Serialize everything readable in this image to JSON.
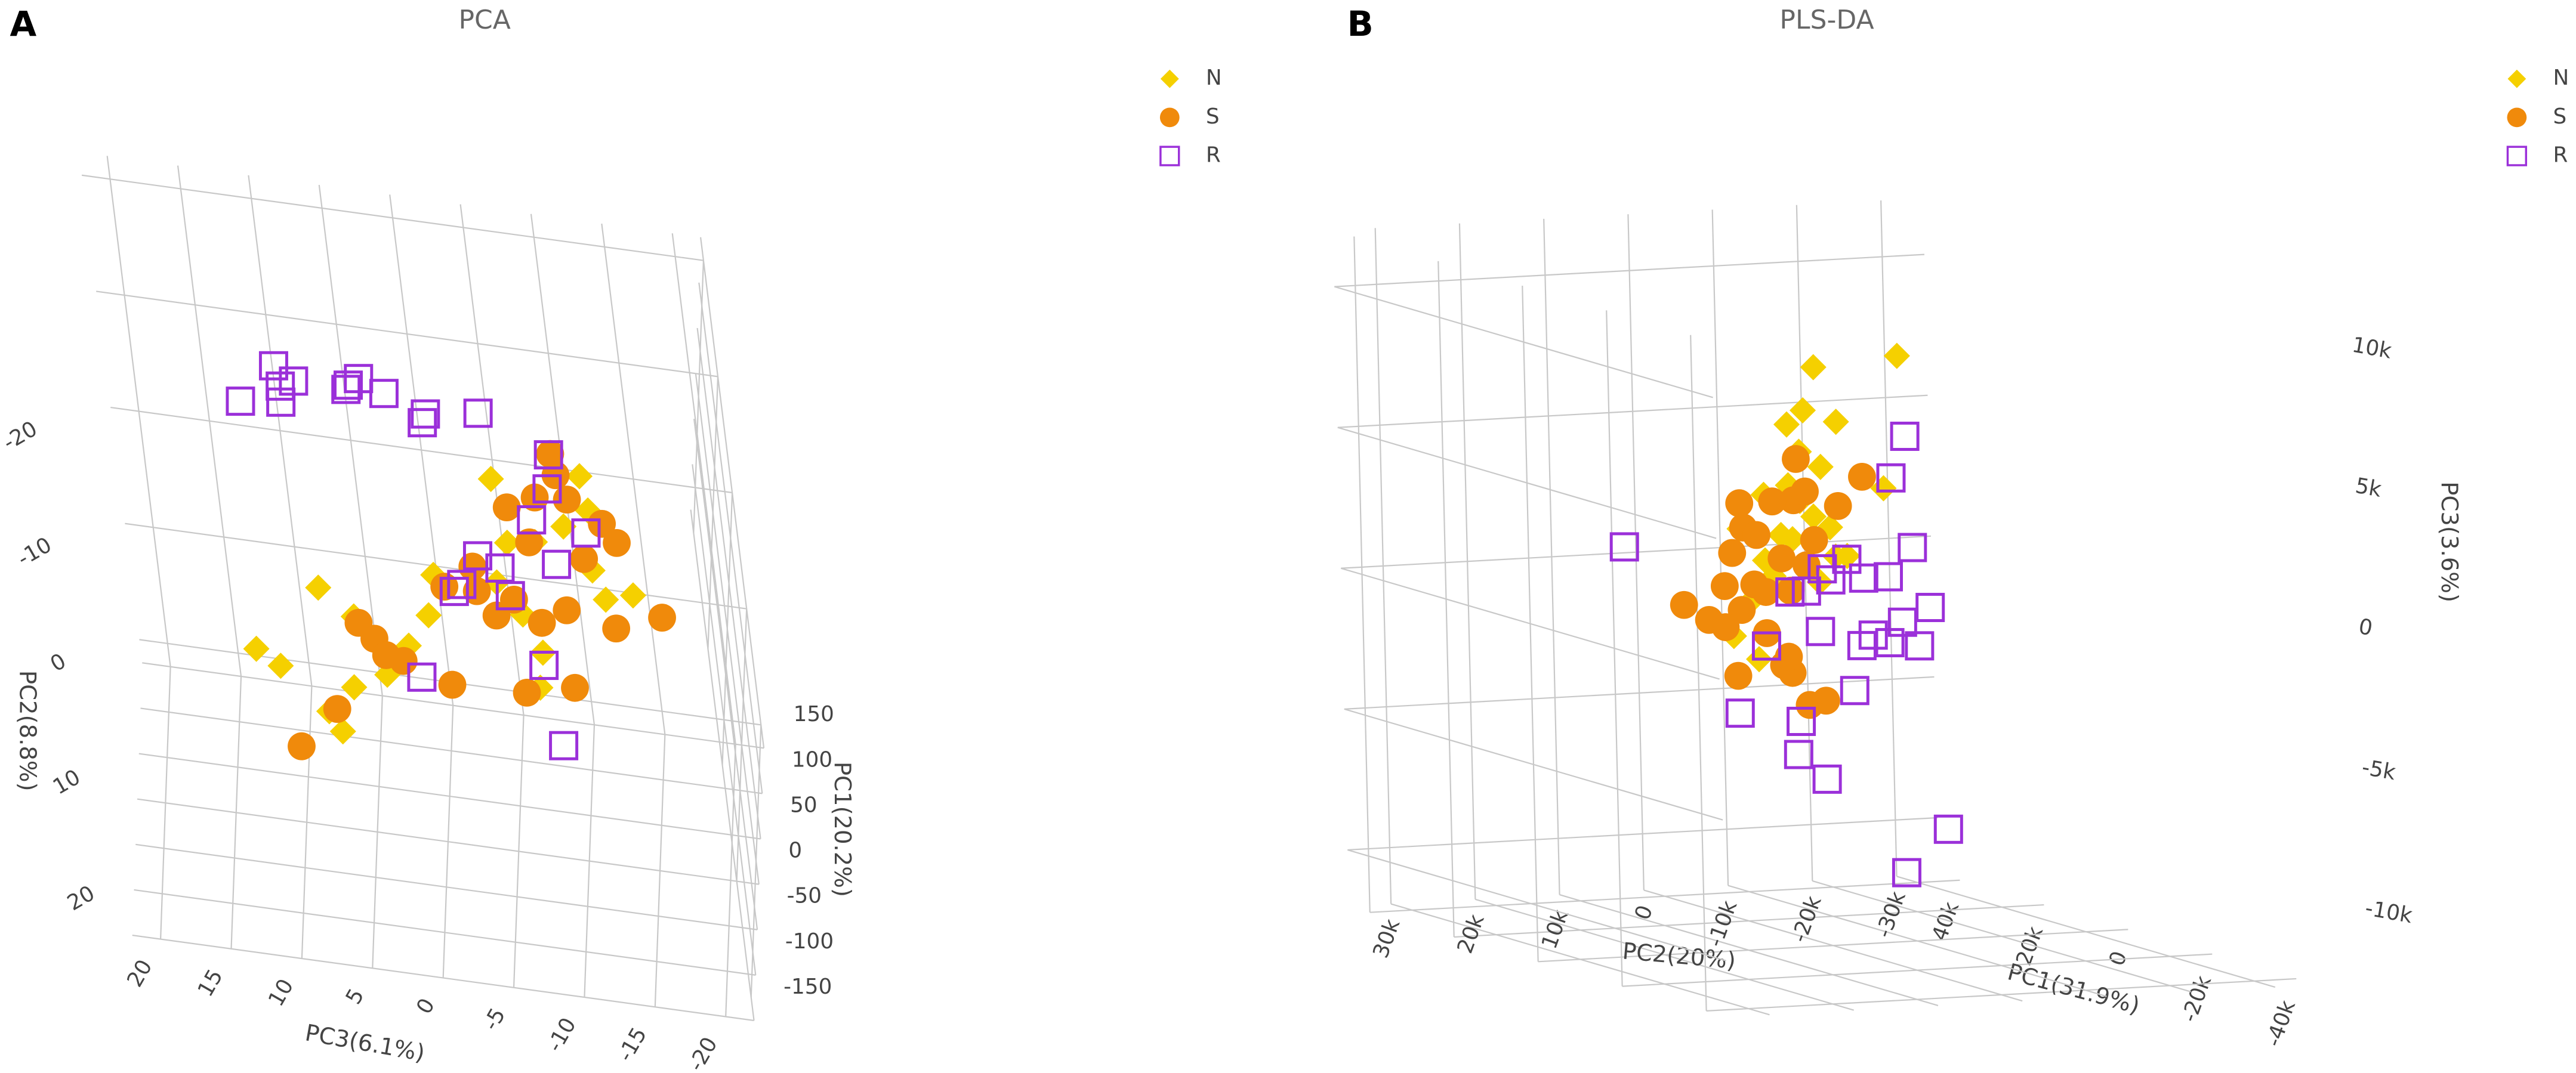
{
  "chart_data": [
    {
      "type": "scatter3d",
      "panel_label": "A",
      "title": "PCA",
      "xlabel": "PC1(20.2%)",
      "ylabel": "PC2(8.8%)",
      "zlabel": "PC3(6.1%)",
      "xlim": [
        -150,
        150
      ],
      "xticks": [
        -150,
        -100,
        -50,
        0,
        50,
        100,
        150
      ],
      "ylim": [
        -22,
        22
      ],
      "yticks": [
        -20,
        -10,
        0,
        10,
        20
      ],
      "zlim": [
        -22,
        22
      ],
      "zticks": [
        -20,
        -15,
        -10,
        -5,
        0,
        5,
        10,
        15,
        20
      ],
      "series": [
        {
          "name": "N",
          "color": "#f5d000",
          "marker": "diamond",
          "x": [
            30,
            30,
            30,
            30,
            30,
            30,
            30,
            30,
            30,
            30,
            30,
            30,
            30,
            30,
            30,
            30,
            30,
            30,
            30,
            30,
            30,
            30,
            30,
            30
          ],
          "y": [
            -7.9,
            -9.2,
            -4.6,
            -6.3,
            0.6,
            -1.1,
            -2.5,
            1.2,
            4.8,
            3.7,
            5.8,
            9.8,
            11.0,
            7.7,
            10.5,
            12.0,
            14.4,
            16.0,
            6.7,
            9.8,
            1.1,
            3.6,
            1.3,
            -2.9
          ],
          "z": [
            -6.0,
            -12.4,
            -10.8,
            -12.7,
            -15.2,
            -12.5,
            -6.6,
            -1.0,
            -0.3,
            7.4,
            5.1,
            12.4,
            10.8,
            1.4,
            3.2,
            5.7,
            7.7,
            6.9,
            -8.2,
            -7.7,
            -5.5,
            -7.1,
            -13.2,
            -8.6
          ]
        },
        {
          "name": "S",
          "color": "#f08a0b",
          "marker": "circle",
          "x": [
            10,
            10,
            10,
            10,
            10,
            10,
            10,
            10,
            10,
            10,
            10,
            10,
            10,
            10,
            10,
            10,
            10,
            10,
            10,
            10,
            10,
            10,
            10,
            10,
            10,
            10,
            10
          ],
          "y": [
            -12.4,
            -8.4,
            -8.6,
            -6.9,
            -5.4,
            -3.6,
            -7.2,
            -1.6,
            0.5,
            2.4,
            0.5,
            0.8,
            1.1,
            2.1,
            0.6,
            2.5,
            8.8,
            7.8,
            9.0,
            5.9,
            4.7,
            7.2,
            7.5,
            12.5,
            16.2,
            -10.6,
            -4.4
          ],
          "z": [
            -10.7,
            -9.2,
            -11.5,
            -13.8,
            -14.7,
            -12.2,
            -7.1,
            -4.1,
            -4.2,
            -5.4,
            -1.9,
            -6.8,
            -10.5,
            -13.9,
            -17.3,
            -8.6,
            -6.9,
            -10.4,
            -1.6,
            3.6,
            4.6,
            2.9,
            1.7,
            6.9,
            9.8,
            -10.9,
            -8.4
          ]
        },
        {
          "name": "R",
          "color": "#9b30d9",
          "marker": "square",
          "x": [
            -50,
            -50,
            -50,
            -50,
            -50,
            -50,
            -50,
            -50,
            -50,
            -50,
            -50,
            -50,
            -50,
            -50,
            -50,
            -50,
            -50,
            -50,
            -50,
            -50,
            -50,
            -50,
            -50,
            -50,
            -50
          ],
          "y": [
            -21.6,
            -18.1,
            -18.5,
            -20.5,
            -20.4,
            -21.5,
            -20.5,
            -19.2,
            -19.9,
            -17.1,
            -14.1,
            -11.2,
            -7.4,
            -6.6,
            -4.7,
            -4.0,
            -7.6,
            -10.7,
            -4.3,
            1.4,
            3.9,
            8.2,
            -20.8,
            -18.4,
            -19.9
          ],
          "z": [
            7.8,
            10.5,
            7.6,
            6.5,
            2.8,
            1.8,
            0.1,
            -2.7,
            -6.5,
            -11.2,
            -10.8,
            -9.4,
            -5.2,
            -6.7,
            -3.8,
            -3.2,
            -10.8,
            -13.2,
            -7.2,
            -9.0,
            -0.1,
            -9.7,
            2.6,
            -2.4,
            7.5
          ]
        }
      ]
    },
    {
      "type": "scatter3d",
      "panel_label": "B",
      "title": "PLS-DA",
      "xlabel": "PC1(31.9%)",
      "ylabel": "PC2(20%)",
      "zlabel": "PC3(3.6%)",
      "xlim": [
        -45000,
        45000
      ],
      "xticks": [
        {
          "value": 40000,
          "label": "40k"
        },
        {
          "value": 20000,
          "label": "20k"
        },
        0,
        {
          "value": -20000,
          "label": "-20k"
        },
        {
          "value": -40000,
          "label": "-40k"
        }
      ],
      "ylim": [
        -35000,
        35000
      ],
      "yticks": [
        {
          "value": 30000,
          "label": "30k"
        },
        {
          "value": 20000,
          "label": "20k"
        },
        {
          "value": 10000,
          "label": "10k"
        },
        0,
        {
          "value": -10000,
          "label": "-10k"
        },
        {
          "value": -20000,
          "label": "-20k"
        },
        {
          "value": -30000,
          "label": "-30k"
        }
      ],
      "zlim": [
        -12000,
        12000
      ],
      "zticks": [
        {
          "value": 10000,
          "label": "10k"
        },
        {
          "value": 5000,
          "label": "5k"
        },
        0,
        {
          "value": -5000,
          "label": "-5k"
        },
        {
          "value": -10000,
          "label": "-10k"
        }
      ],
      "series": [
        {
          "name": "N",
          "color": "#f5d000",
          "marker": "diamond",
          "x": [
            5000,
            5000,
            5000,
            5000,
            5000,
            5000,
            5000,
            5000,
            5000,
            5000,
            5000,
            5000,
            5000,
            5000,
            5000,
            5000,
            5000,
            5000,
            5000,
            5000,
            5000,
            5000,
            5000,
            5000
          ],
          "y": [
            -1720,
            -11660,
            -350,
            -4250,
            1600,
            -2300,
            230,
            -1330,
            2570,
            4520,
            1210,
            -9710,
            3550,
            -1910,
            6470,
            4520,
            -3270,
            230,
            7450,
            -5220,
            8420,
            5500,
            -3860,
            1600
          ],
          "z": [
            8290,
            8530,
            6780,
            6310,
            6310,
            4740,
            3570,
            2990,
            2400,
            1530,
            2230,
            3860,
            950,
            660,
            70,
            3860,
            2580,
            5320,
            2700,
            1530,
            -1090,
            -1960,
            1530,
            4150
          ]
        },
        {
          "name": "S",
          "color": "#f08a0b",
          "marker": "circle",
          "x": [
            10000,
            10000,
            10000,
            10000,
            10000,
            10000,
            10000,
            10000,
            10000,
            10000,
            10000,
            10000,
            10000,
            10000,
            10000,
            10000,
            10000,
            10000,
            10000,
            10000,
            10000,
            10000,
            10000,
            10000,
            10000,
            10000,
            10000,
            10000
          ],
          "y": [
            -1870,
            -1480,
            -2850,
            -6740,
            -9670,
            4950,
            1050,
            4560,
            3000,
            5930,
            80,
            -2850,
            3390,
            6900,
            4950,
            2030,
            -900,
            11770,
            6900,
            8850,
            80,
            5540,
            -900,
            -2850,
            -4800,
            -510,
            2030,
            -3820
          ],
          "z": [
            4810,
            3350,
            3640,
            3060,
            4050,
            3350,
            3350,
            2480,
            2190,
            1600,
            1310,
            1020,
            440,
            440,
            -440,
            150,
            150,
            -150,
            -1020,
            -730,
            -2480,
            -2770,
            -2770,
            -3940,
            -3820,
            -2190,
            -1310,
            1900
          ]
        },
        {
          "name": "R",
          "color": "#9b30d9",
          "marker": "square",
          "x": [
            -10000,
            -10000,
            -10000,
            -10000,
            -10000,
            -10000,
            -10000,
            -10000,
            -10000,
            -10000,
            -10000,
            -10000,
            -10000,
            -10000,
            -10000,
            -10000,
            -10000,
            -10000,
            -10000,
            -10000,
            -10000,
            -10000,
            -10000,
            -10000,
            -10000,
            -10000
          ],
          "y": [
            28580,
            -4950,
            -3200,
            -5540,
            2260,
            5190,
            4210,
            310,
            -2610,
            9080,
            7130,
            12010,
            5580,
            -660,
            -4170,
            -7490,
            -6120,
            -2610,
            700,
            1680,
            15320,
            8110,
            8500,
            5190,
            -9040,
            -3980
          ],
          "z": [
            3060,
            6440,
            4990,
            2480,
            2190,
            1900,
            1490,
            1490,
            1490,
            1140,
            1140,
            -730,
            -320,
            -550,
            -150,
            320,
            -1020,
            -850,
            -900,
            -2480,
            -3060,
            -3470,
            -4640,
            -5570,
            -7580,
            -9040
          ]
        }
      ]
    }
  ]
}
